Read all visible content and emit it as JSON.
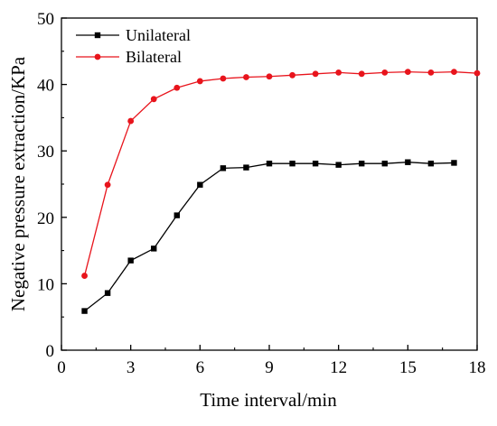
{
  "chart_data": {
    "type": "line",
    "title": "",
    "xlabel": "Time interval/min",
    "ylabel": "Negative pressure extraction/KPa",
    "xlim": [
      0,
      18
    ],
    "ylim": [
      0,
      50
    ],
    "xticks": [
      0,
      3,
      6,
      9,
      12,
      15,
      18
    ],
    "yticks": [
      0,
      10,
      20,
      30,
      40,
      50
    ],
    "grid": false,
    "legend_position": "top-left",
    "series": [
      {
        "name": "Unilateral",
        "color": "#000000",
        "marker": "square",
        "x": [
          1,
          2,
          3,
          4,
          5,
          6,
          7,
          8,
          9,
          10,
          11,
          12,
          13,
          14,
          15,
          16,
          17
        ],
        "y": [
          5.9,
          8.6,
          13.5,
          15.3,
          20.3,
          24.9,
          27.4,
          27.5,
          28.1,
          28.1,
          28.1,
          27.9,
          28.1,
          28.1,
          28.3,
          28.1,
          28.2
        ]
      },
      {
        "name": "Bilateral",
        "color": "#e8141c",
        "marker": "circle",
        "x": [
          1,
          2,
          3,
          4,
          5,
          6,
          7,
          8,
          9,
          10,
          11,
          12,
          13,
          14,
          15,
          16,
          17,
          18
        ],
        "y": [
          11.2,
          24.9,
          34.5,
          37.8,
          39.5,
          40.5,
          40.9,
          41.1,
          41.2,
          41.4,
          41.6,
          41.8,
          41.6,
          41.8,
          41.9,
          41.8,
          41.9,
          41.7
        ]
      }
    ]
  }
}
